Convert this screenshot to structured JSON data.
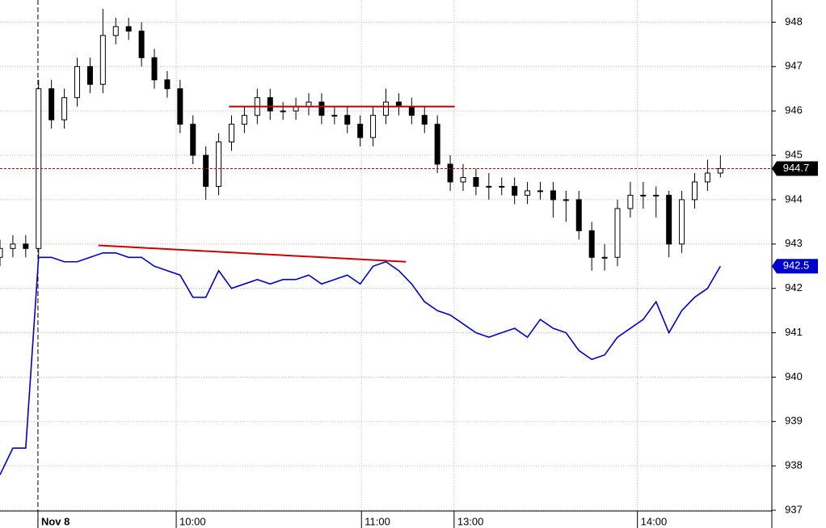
{
  "chart_data": {
    "type": "candlestick",
    "x": [
      0,
      2,
      4,
      6,
      8,
      10,
      12,
      14,
      16,
      18,
      20,
      22,
      24,
      26,
      28,
      30,
      32,
      34,
      36,
      38,
      40,
      42,
      44,
      46,
      48,
      50,
      52,
      54,
      56,
      58,
      60,
      62,
      64,
      66,
      68,
      70,
      72,
      74,
      76,
      78,
      80,
      82,
      84,
      86,
      88,
      90,
      92,
      94,
      96,
      98,
      100,
      102,
      104,
      106,
      108,
      110,
      112
    ],
    "series": [
      {
        "kind": "candlestick",
        "color": "#000000",
        "open": [
          942.7,
          942.9,
          943.0,
          942.9,
          946.5,
          945.8,
          946.3,
          947.0,
          946.6,
          947.7,
          947.9,
          947.8,
          947.2,
          946.7,
          946.5,
          945.7,
          945.0,
          944.3,
          945.3,
          945.7,
          945.9,
          946.3,
          946.0,
          946.0,
          946.1,
          946.2,
          945.9,
          945.9,
          945.7,
          945.4,
          945.9,
          946.2,
          946.1,
          945.9,
          945.7,
          944.8,
          944.4,
          944.5,
          944.3,
          944.3,
          944.3,
          944.1,
          944.2,
          944.2,
          944.0,
          944.0,
          943.3,
          942.7,
          942.7,
          943.8,
          944.1,
          944.1,
          944.1,
          943.0,
          944.0,
          944.4,
          944.6
        ],
        "high": [
          943.1,
          943.2,
          943.2,
          946.7,
          946.7,
          946.5,
          947.2,
          947.2,
          948.3,
          948.1,
          948.1,
          948.0,
          947.4,
          946.9,
          946.7,
          945.9,
          945.2,
          945.5,
          945.9,
          946.1,
          946.5,
          946.5,
          946.2,
          946.3,
          946.4,
          946.4,
          946.1,
          946.1,
          945.9,
          946.1,
          946.5,
          946.4,
          946.3,
          946.1,
          945.9,
          945.0,
          944.8,
          944.7,
          944.6,
          944.5,
          944.5,
          944.4,
          944.4,
          944.4,
          944.2,
          944.2,
          943.5,
          943.0,
          944.0,
          944.4,
          944.4,
          944.3,
          944.2,
          944.2,
          944.6,
          944.9,
          945.0
        ],
        "low": [
          942.5,
          942.7,
          942.7,
          942.7,
          945.6,
          945.6,
          946.1,
          946.4,
          946.4,
          947.5,
          947.6,
          947.0,
          946.5,
          946.3,
          945.5,
          944.8,
          944.0,
          944.1,
          945.1,
          945.5,
          945.7,
          945.8,
          945.8,
          945.8,
          945.9,
          945.7,
          945.7,
          945.5,
          945.2,
          945.2,
          945.7,
          945.9,
          945.7,
          945.5,
          944.6,
          944.2,
          944.2,
          944.1,
          944.0,
          944.1,
          943.9,
          943.9,
          944.0,
          943.6,
          943.5,
          943.1,
          942.4,
          942.4,
          942.5,
          943.6,
          943.8,
          943.6,
          942.7,
          942.8,
          943.8,
          944.2,
          944.5
        ],
        "close": [
          942.9,
          943.0,
          942.9,
          946.5,
          945.8,
          946.3,
          947.0,
          946.6,
          947.7,
          947.9,
          947.8,
          947.2,
          946.7,
          946.5,
          945.7,
          945.0,
          944.3,
          945.3,
          945.7,
          945.9,
          946.3,
          946.0,
          946.0,
          946.1,
          946.2,
          945.9,
          945.9,
          945.7,
          945.4,
          945.9,
          946.2,
          946.1,
          945.9,
          945.7,
          944.8,
          944.4,
          944.5,
          944.3,
          944.3,
          944.3,
          944.1,
          944.2,
          944.2,
          944.0,
          944.0,
          943.3,
          942.7,
          942.7,
          943.8,
          944.1,
          944.1,
          944.1,
          943.0,
          944.0,
          944.4,
          944.6,
          944.7
        ],
        "last_label_color": "#000000"
      },
      {
        "kind": "line",
        "color": "#0000cc",
        "values": [
          937.8,
          938.4,
          938.4,
          942.7,
          942.7,
          942.6,
          942.6,
          942.7,
          942.8,
          942.8,
          942.7,
          942.7,
          942.5,
          942.4,
          942.3,
          941.8,
          941.8,
          942.4,
          942.0,
          942.1,
          942.2,
          942.1,
          942.2,
          942.2,
          942.3,
          942.1,
          942.2,
          942.3,
          942.1,
          942.5,
          942.6,
          942.4,
          942.1,
          941.7,
          941.5,
          941.4,
          941.2,
          941.0,
          940.9,
          941.0,
          941.1,
          940.9,
          941.3,
          941.1,
          941.0,
          940.6,
          940.4,
          940.5,
          940.9,
          941.1,
          941.3,
          941.7,
          941.0,
          941.5,
          941.8,
          942.0,
          942.5
        ],
        "last_label_color": "#0000cc"
      }
    ],
    "drawn_lines": [
      {
        "x": [
          35.6,
          70.7
        ],
        "y": [
          946.1,
          946.1
        ],
        "color": "#cc0000"
      },
      {
        "x": [
          15.3,
          63.1
        ],
        "y": [
          942.97,
          942.6
        ],
        "color": "#cc0000"
      }
    ],
    "last_price_line_color": "#cc0000",
    "xlim": [
      0,
      120
    ],
    "xticks": [
      {
        "value": 5.9,
        "label": "Nov 8"
      },
      {
        "value": 27.4,
        "label": "10:00"
      },
      {
        "value": 56.2,
        "label": "11:00"
      },
      {
        "value": 70.6,
        "label": "13:00"
      },
      {
        "value": 99.1,
        "label": "14:00"
      }
    ],
    "session_break_tick": 0,
    "ylim": [
      936.6,
      948.5
    ],
    "yticks": [
      937,
      938,
      939,
      940,
      941,
      942,
      943,
      944,
      945,
      946,
      947,
      948
    ],
    "grid": true
  }
}
